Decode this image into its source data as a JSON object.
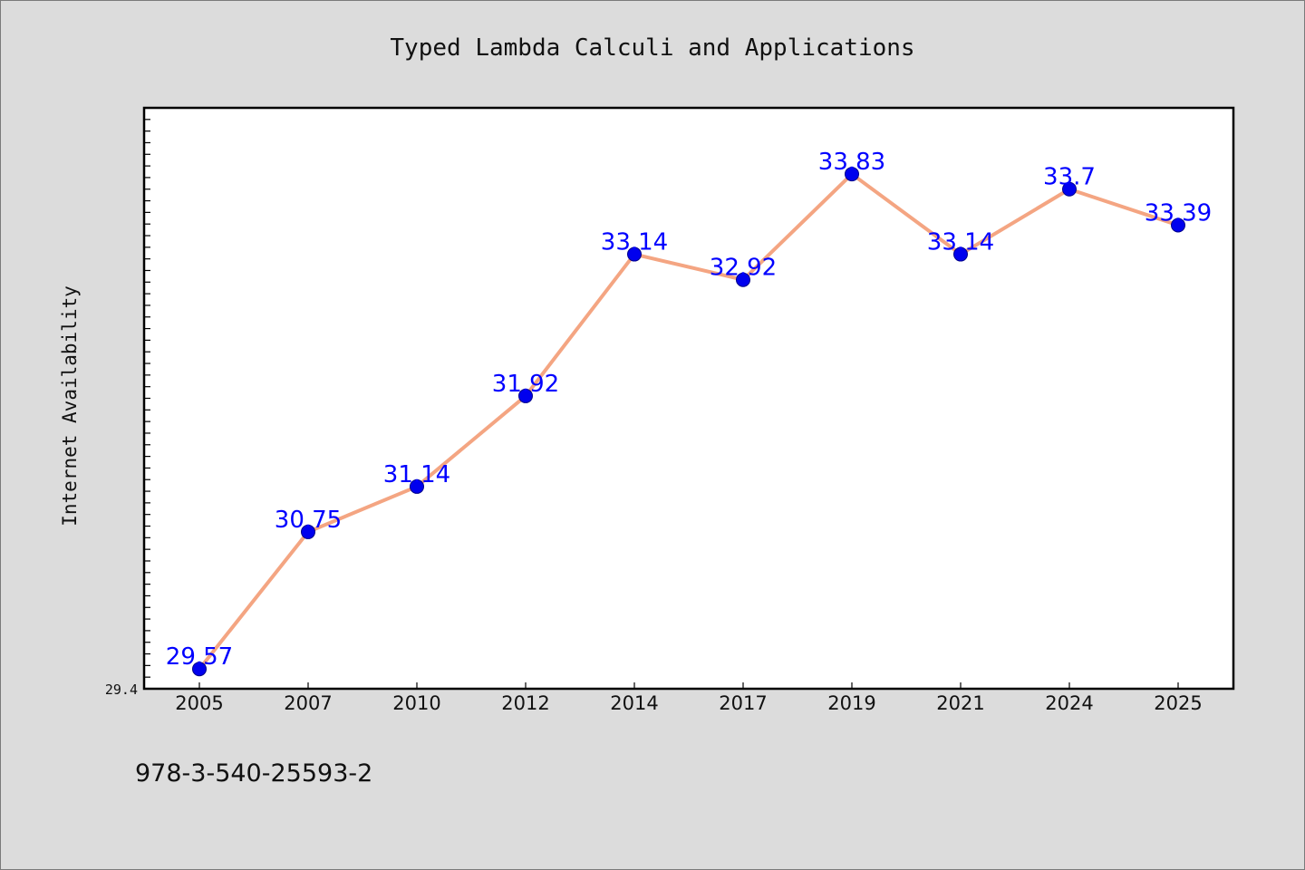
{
  "chart_data": {
    "type": "line",
    "title": "Typed Lambda Calculi and Applications",
    "xlabel": "",
    "ylabel": "Internet Availability",
    "categories": [
      "2005",
      "2007",
      "2010",
      "2012",
      "2014",
      "2017",
      "2019",
      "2021",
      "2024",
      "2025"
    ],
    "series": [
      {
        "values": [
          29.57,
          30.75,
          31.14,
          31.92,
          33.14,
          32.92,
          33.83,
          33.14,
          33.7,
          33.39
        ],
        "data_labels": [
          "29.57",
          "30.75",
          "31.14",
          "31.92",
          "33.14",
          "32.92",
          "33.83",
          "33.14",
          "33.7",
          "33.39"
        ]
      }
    ],
    "ylim": [
      29.4,
      34.4
    ],
    "yticks_labeled": [
      "29.4"
    ],
    "grid": false,
    "legend": "none",
    "colors": {
      "line": "#f4a582",
      "marker": "#0000ee",
      "label": "#0000ff",
      "background": "#dcdcdc",
      "plot_area": "#ffffff"
    }
  },
  "footnote": "978-3-540-25593-2"
}
